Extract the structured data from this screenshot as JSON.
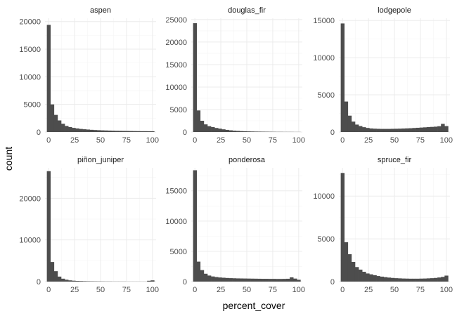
{
  "chart_data": {
    "type": "bar",
    "subtype": "faceted-histogram",
    "xlabel": "percent_cover",
    "ylabel": "count",
    "bar_color": "#4d4d4d",
    "grid": true,
    "x_ticks": [
      0,
      25,
      50,
      75,
      100
    ],
    "xlim": [
      -3.5,
      103.5
    ],
    "bin_width": 3.45,
    "bin_starts": [
      -1.72,
      1.72,
      5.17,
      8.62,
      12.07,
      15.52,
      18.97,
      22.41,
      25.86,
      29.31,
      32.76,
      36.21,
      39.66,
      43.1,
      46.55,
      50.0,
      53.45,
      56.9,
      60.34,
      63.79,
      67.24,
      70.69,
      74.14,
      77.59,
      81.03,
      84.48,
      87.93,
      91.38,
      94.83,
      98.28
    ],
    "facets": [
      {
        "title": "aspen",
        "y_ticks": [
          0,
          5000,
          10000,
          15000,
          20000
        ],
        "ylim": [
          0,
          20600
        ],
        "counts": [
          19400,
          5000,
          3100,
          2100,
          1500,
          1100,
          900,
          750,
          650,
          560,
          500,
          450,
          400,
          360,
          330,
          300,
          280,
          260,
          240,
          220,
          210,
          200,
          190,
          180,
          170,
          160,
          150,
          150,
          140,
          140
        ]
      },
      {
        "title": "douglas_fir",
        "y_ticks": [
          0,
          5000,
          10000,
          15000,
          20000,
          25000
        ],
        "ylim": [
          0,
          25300
        ],
        "counts": [
          24200,
          4800,
          2500,
          1700,
          1300,
          1100,
          900,
          750,
          600,
          480,
          380,
          300,
          250,
          200,
          170,
          140,
          120,
          100,
          90,
          80,
          70,
          60,
          50,
          40,
          40,
          30,
          30,
          30,
          20,
          20
        ]
      },
      {
        "title": "lodgepole",
        "y_ticks": [
          0,
          5000,
          10000,
          15000
        ],
        "ylim": [
          0,
          15300
        ],
        "counts": [
          14600,
          4100,
          2200,
          1400,
          1000,
          800,
          650,
          550,
          480,
          450,
          430,
          420,
          420,
          420,
          430,
          440,
          450,
          470,
          490,
          510,
          540,
          570,
          600,
          630,
          660,
          690,
          720,
          780,
          1100,
          800
        ]
      },
      {
        "title": "piñon_juniper",
        "y_ticks": [
          0,
          10000,
          20000
        ],
        "ylim": [
          0,
          27300
        ],
        "counts": [
          26500,
          4700,
          2500,
          1200,
          700,
          450,
          300,
          220,
          170,
          140,
          110,
          90,
          80,
          70,
          60,
          50,
          40,
          40,
          30,
          30,
          30,
          30,
          20,
          20,
          20,
          20,
          20,
          20,
          200,
          300
        ]
      },
      {
        "title": "ponderosa",
        "y_ticks": [
          0,
          5000,
          10000,
          15000
        ],
        "ylim": [
          0,
          18800
        ],
        "counts": [
          18400,
          3300,
          1900,
          1300,
          1000,
          850,
          750,
          680,
          640,
          600,
          570,
          550,
          530,
          520,
          510,
          500,
          490,
          480,
          470,
          460,
          460,
          450,
          450,
          440,
          440,
          450,
          470,
          700,
          500,
          300
        ]
      },
      {
        "title": "spruce_fir",
        "y_ticks": [
          0,
          5000,
          10000
        ],
        "ylim": [
          0,
          13300
        ],
        "counts": [
          12700,
          4600,
          3200,
          2300,
          1700,
          1400,
          1150,
          950,
          850,
          750,
          650,
          580,
          520,
          470,
          430,
          400,
          380,
          360,
          350,
          340,
          340,
          340,
          350,
          360,
          380,
          400,
          430,
          480,
          550,
          700
        ]
      }
    ]
  }
}
